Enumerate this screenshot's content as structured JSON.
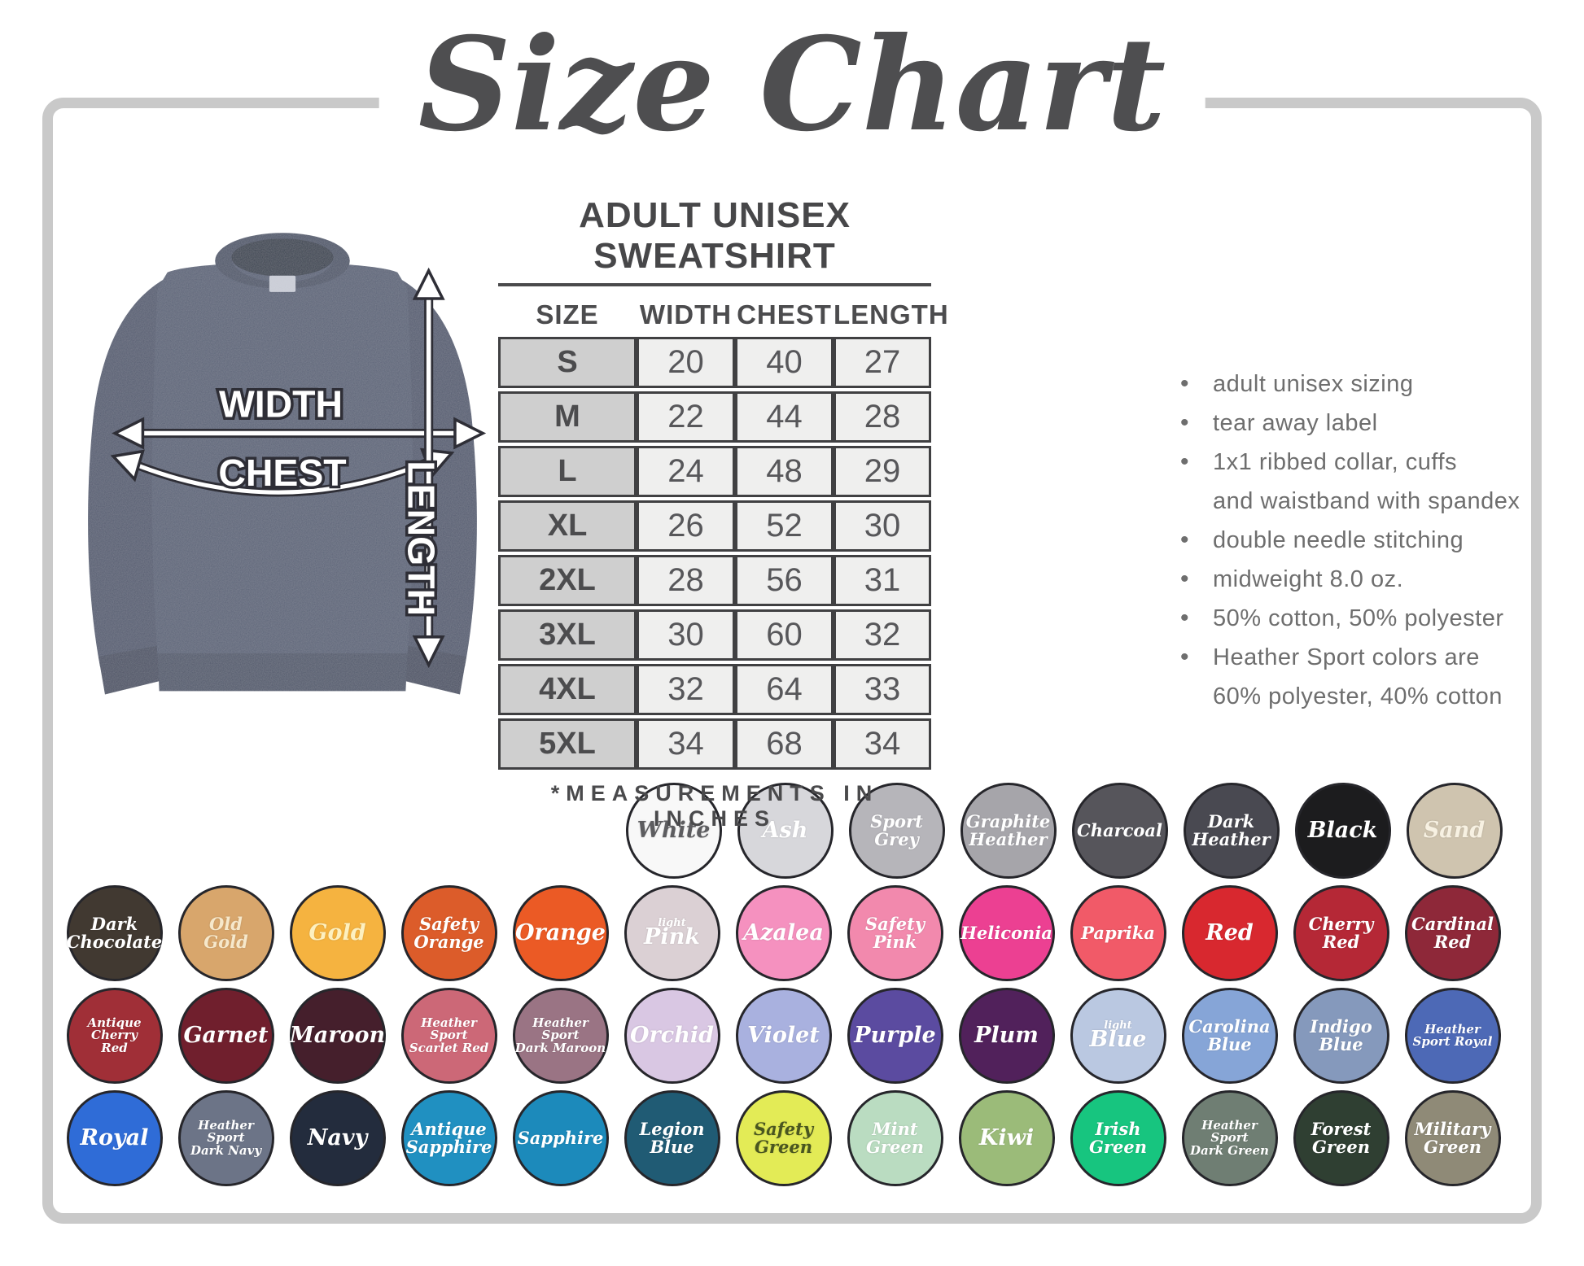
{
  "title": "Size Chart",
  "diagram": {
    "width_label": "WIDTH",
    "chest_label": "CHEST",
    "length_label": "LENGTH"
  },
  "table": {
    "heading": "ADULT UNISEX SWEATSHIRT",
    "columns": [
      "SIZE",
      "WIDTH",
      "CHEST",
      "LENGTH"
    ],
    "rows": [
      [
        "S",
        "20",
        "40",
        "27"
      ],
      [
        "M",
        "22",
        "44",
        "28"
      ],
      [
        "L",
        "24",
        "48",
        "29"
      ],
      [
        "XL",
        "26",
        "52",
        "30"
      ],
      [
        "2XL",
        "28",
        "56",
        "31"
      ],
      [
        "3XL",
        "30",
        "60",
        "32"
      ],
      [
        "4XL",
        "32",
        "64",
        "33"
      ],
      [
        "5XL",
        "34",
        "68",
        "34"
      ]
    ],
    "footnote": "*MEASUREMENTS IN INCHES"
  },
  "features": [
    [
      "adult unisex sizing"
    ],
    [
      "tear away label"
    ],
    [
      "1x1 ribbed collar, cuffs",
      "and waistband with spandex"
    ],
    [
      "double needle stitching"
    ],
    [
      "midweight 8.0 oz."
    ],
    [
      "50% cotton, 50% polyester"
    ],
    [
      "Heather Sport colors are",
      "60% polyester, 40% cotton"
    ]
  ],
  "colors": {
    "frame": "#c9c9c9",
    "heading_text": "#474749",
    "bullet_text": "#6e6e6e",
    "table_border": "#404042",
    "size_column_bg": "#cfcfcf",
    "value_cell_bg": "#efefee",
    "sweatshirt_heather_navy": "#5a6276"
  },
  "swatch_rows": [
    [
      {
        "name": "White",
        "bg": "#f8f8f8",
        "fg": "#5d5d60",
        "size": "lg",
        "lines": [
          {
            "t": "White"
          }
        ]
      },
      {
        "name": "Ash",
        "bg": "#d7d7db",
        "size": "lg",
        "lines": [
          {
            "t": "Ash"
          }
        ]
      },
      {
        "name": "Sport Grey",
        "bg": "#b6b5ba",
        "size": "md",
        "lines": [
          {
            "t": "Sport"
          },
          {
            "t": "Grey"
          }
        ]
      },
      {
        "name": "Graphite Heather",
        "bg": "#a6a5aa",
        "size": "md",
        "lines": [
          {
            "t": "Graphite"
          },
          {
            "t": "Heather"
          }
        ]
      },
      {
        "name": "Charcoal",
        "bg": "#56555b",
        "size": "md",
        "lines": [
          {
            "t": "Charcoal"
          }
        ]
      },
      {
        "name": "Dark Heather",
        "bg": "#494951",
        "size": "md",
        "lines": [
          {
            "t": "Dark"
          },
          {
            "t": "Heather"
          }
        ]
      },
      {
        "name": "Black",
        "bg": "#1c1c1e",
        "size": "lg",
        "lines": [
          {
            "t": "Black"
          }
        ]
      },
      {
        "name": "Sand",
        "bg": "#cfc4af",
        "fg": "#f7f1e2",
        "size": "lg",
        "lines": [
          {
            "t": "Sand"
          }
        ]
      }
    ],
    [
      {
        "name": "Dark Chocolate",
        "bg": "#413931",
        "size": "md",
        "lines": [
          {
            "t": "Dark"
          },
          {
            "t": "Chocolate"
          }
        ]
      },
      {
        "name": "Old Gold",
        "bg": "#d8a66c",
        "fg": "#f6e8cb",
        "size": "md",
        "lines": [
          {
            "t": "Old"
          },
          {
            "t": "Gold"
          }
        ]
      },
      {
        "name": "Gold",
        "bg": "#f5b340",
        "fg": "#fdf0c0",
        "size": "lg",
        "lines": [
          {
            "t": "Gold"
          }
        ]
      },
      {
        "name": "Safety Orange",
        "bg": "#dc5c2a",
        "size": "md",
        "lines": [
          {
            "t": "Safety"
          },
          {
            "t": "Orange"
          }
        ]
      },
      {
        "name": "Orange",
        "bg": "#eb5a25",
        "size": "lg",
        "lines": [
          {
            "t": "Orange"
          }
        ]
      },
      {
        "name": "Light Pink",
        "bg": "#dbd0d4",
        "size": "lg",
        "lines": [
          {
            "t": "light",
            "small": true
          },
          {
            "t": "Pink"
          }
        ]
      },
      {
        "name": "Azalea",
        "bg": "#f591bf",
        "size": "lg",
        "lines": [
          {
            "t": "Azalea"
          }
        ]
      },
      {
        "name": "Safety Pink",
        "bg": "#f289ad",
        "size": "md",
        "lines": [
          {
            "t": "Safety"
          },
          {
            "t": "Pink"
          }
        ]
      },
      {
        "name": "Heliconia",
        "bg": "#ec4092",
        "size": "md",
        "lines": [
          {
            "t": "Heliconia"
          }
        ]
      },
      {
        "name": "Paprika",
        "bg": "#f15a68",
        "size": "md",
        "lines": [
          {
            "t": "Paprika"
          }
        ]
      },
      {
        "name": "Red",
        "bg": "#d8282f",
        "size": "lg",
        "lines": [
          {
            "t": "Red"
          }
        ]
      },
      {
        "name": "Cherry Red",
        "bg": "#b52836",
        "size": "md",
        "lines": [
          {
            "t": "Cherry"
          },
          {
            "t": "Red"
          }
        ]
      },
      {
        "name": "Cardinal Red",
        "bg": "#8e2839",
        "size": "md",
        "lines": [
          {
            "t": "Cardinal"
          },
          {
            "t": "Red"
          }
        ]
      }
    ],
    [
      {
        "name": "Antique Cherry Red",
        "bg": "#a02f37",
        "size": "sm",
        "lines": [
          {
            "t": "Antique"
          },
          {
            "t": "Cherry"
          },
          {
            "t": "Red"
          }
        ]
      },
      {
        "name": "Garnet",
        "bg": "#701f2d",
        "size": "lg",
        "lines": [
          {
            "t": "Garnet"
          }
        ]
      },
      {
        "name": "Maroon",
        "bg": "#451f2c",
        "size": "lg",
        "lines": [
          {
            "t": "Maroon"
          }
        ]
      },
      {
        "name": "Heather Sport Scarlet Red",
        "bg": "#cc6877",
        "size": "sm",
        "lines": [
          {
            "t": "Heather Sport"
          },
          {
            "t": "Scarlet Red"
          }
        ]
      },
      {
        "name": "Heather Sport Dark Maroon",
        "bg": "#9a7484",
        "size": "sm",
        "lines": [
          {
            "t": "Heather Sport"
          },
          {
            "t": "Dark Maroon"
          }
        ]
      },
      {
        "name": "Orchid",
        "bg": "#d9c7e3",
        "size": "lg",
        "lines": [
          {
            "t": "Orchid"
          }
        ]
      },
      {
        "name": "Violet",
        "bg": "#a9b1df",
        "size": "lg",
        "lines": [
          {
            "t": "Violet"
          }
        ]
      },
      {
        "name": "Purple",
        "bg": "#5b4ba0",
        "size": "lg",
        "lines": [
          {
            "t": "Purple"
          }
        ]
      },
      {
        "name": "Plum",
        "bg": "#51215b",
        "size": "lg",
        "lines": [
          {
            "t": "Plum"
          }
        ]
      },
      {
        "name": "Light Blue",
        "bg": "#bac8e1",
        "size": "lg",
        "lines": [
          {
            "t": "light",
            "small": true
          },
          {
            "t": "Blue"
          }
        ]
      },
      {
        "name": "Carolina Blue",
        "bg": "#86a5d7",
        "size": "md",
        "lines": [
          {
            "t": "Carolina"
          },
          {
            "t": "Blue"
          }
        ]
      },
      {
        "name": "Indigo Blue",
        "bg": "#8599bc",
        "size": "md",
        "lines": [
          {
            "t": "Indigo"
          },
          {
            "t": "Blue"
          }
        ]
      },
      {
        "name": "Heather Sport Royal",
        "bg": "#4d69b6",
        "size": "sm",
        "lines": [
          {
            "t": "Heather"
          },
          {
            "t": "Sport Royal"
          }
        ]
      }
    ],
    [
      {
        "name": "Royal",
        "bg": "#2f6cd7",
        "size": "lg",
        "lines": [
          {
            "t": "Royal"
          }
        ]
      },
      {
        "name": "Heather Sport Dark Navy",
        "bg": "#6c7487",
        "size": "sm",
        "lines": [
          {
            "t": "Heather Sport"
          },
          {
            "t": "Dark Navy"
          }
        ]
      },
      {
        "name": "Navy",
        "bg": "#232c3d",
        "size": "lg",
        "lines": [
          {
            "t": "Navy"
          }
        ]
      },
      {
        "name": "Antique Sapphire",
        "bg": "#2090c1",
        "size": "md",
        "lines": [
          {
            "t": "Antique"
          },
          {
            "t": "Sapphire"
          }
        ]
      },
      {
        "name": "Sapphire",
        "bg": "#1c8abb",
        "size": "md",
        "lines": [
          {
            "t": "Sapphire"
          }
        ]
      },
      {
        "name": "Legion Blue",
        "bg": "#205b74",
        "size": "md",
        "lines": [
          {
            "t": "Legion"
          },
          {
            "t": "Blue"
          }
        ]
      },
      {
        "name": "Safety Green",
        "bg": "#e3eb56",
        "fg": "#4a5620",
        "size": "md",
        "lines": [
          {
            "t": "Safety"
          },
          {
            "t": "Green"
          }
        ]
      },
      {
        "name": "Mint Green",
        "bg": "#badcc1",
        "size": "md",
        "lines": [
          {
            "t": "Mint"
          },
          {
            "t": "Green"
          }
        ]
      },
      {
        "name": "Kiwi",
        "bg": "#9bbb79",
        "size": "lg",
        "lines": [
          {
            "t": "Kiwi"
          }
        ]
      },
      {
        "name": "Irish Green",
        "bg": "#17c57f",
        "size": "md",
        "lines": [
          {
            "t": "Irish"
          },
          {
            "t": "Green"
          }
        ]
      },
      {
        "name": "Heather Sport Dark Green",
        "bg": "#6f7e73",
        "size": "sm",
        "lines": [
          {
            "t": "Heather Sport"
          },
          {
            "t": "Dark Green"
          }
        ]
      },
      {
        "name": "Forest Green",
        "bg": "#2f3f32",
        "size": "md",
        "lines": [
          {
            "t": "Forest"
          },
          {
            "t": "Green"
          }
        ]
      },
      {
        "name": "Military Green",
        "bg": "#8f8a77",
        "size": "md",
        "lines": [
          {
            "t": "Military"
          },
          {
            "t": "Green"
          }
        ]
      }
    ]
  ],
  "chart_data": {
    "type": "table",
    "title": "ADULT UNISEX SWEATSHIRT",
    "columns": [
      "SIZE",
      "WIDTH",
      "CHEST",
      "LENGTH"
    ],
    "rows": [
      [
        "S",
        20,
        40,
        27
      ],
      [
        "M",
        22,
        44,
        28
      ],
      [
        "L",
        24,
        48,
        29
      ],
      [
        "XL",
        26,
        52,
        30
      ],
      [
        "2XL",
        28,
        56,
        31
      ],
      [
        "3XL",
        30,
        60,
        32
      ],
      [
        "4XL",
        32,
        64,
        33
      ],
      [
        "5XL",
        34,
        68,
        34
      ]
    ],
    "units": "inches"
  }
}
